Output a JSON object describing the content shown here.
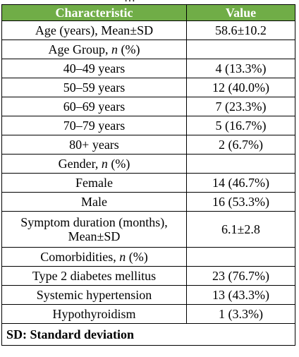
{
  "table": {
    "headers": [
      "Characteristic",
      "Value"
    ],
    "rows": [
      {
        "label": "Age (years), Mean±SD",
        "value": "58.6±10.2"
      },
      {
        "label_pre": "Age Group, ",
        "label_italic": "n",
        "label_post": " (%)",
        "value": ""
      },
      {
        "label": "40–49 years",
        "value": "4 (13.3%)"
      },
      {
        "label": "50–59 years",
        "value": "12 (40.0%)"
      },
      {
        "label": "60–69 years",
        "value": "7 (23.3%)"
      },
      {
        "label": "70–79 years",
        "value": "5 (16.7%)"
      },
      {
        "label": "80+ years",
        "value": "2 (6.7%)"
      },
      {
        "label_pre": "Gender, ",
        "label_italic": "n",
        "label_post": " (%)",
        "value": ""
      },
      {
        "label": "Female",
        "value": "14 (46.7%)"
      },
      {
        "label": "Male",
        "value": "16 (53.3%)"
      },
      {
        "label_line1": "Symptom duration (months),",
        "label_line2": "Mean±SD",
        "value": "6.1±2.8"
      },
      {
        "label_pre": "Comorbidities, ",
        "label_italic": "n",
        "label_post": " (%)",
        "value": ""
      },
      {
        "label": "Type 2 diabetes mellitus",
        "value": "23 (76.7%)"
      },
      {
        "label": "Systemic hypertension",
        "value": "13 (43.3%)"
      },
      {
        "label": "Hypothyroidism",
        "value": "1 (3.3%)"
      }
    ],
    "footnote": "SD: Standard deviation"
  }
}
